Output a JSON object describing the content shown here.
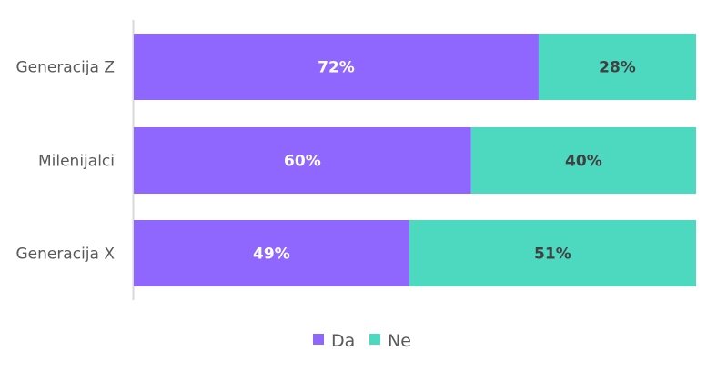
{
  "chart_data": {
    "type": "bar",
    "orientation": "horizontal",
    "stacked": "percent",
    "categories": [
      "Generacija Z",
      "Milenijalci",
      "Generacija X"
    ],
    "series": [
      {
        "name": "Da",
        "values": [
          72,
          60,
          49
        ],
        "color": "#8F67FF",
        "label_color": "#FFFFFF"
      },
      {
        "name": "Ne",
        "values": [
          28,
          40,
          51
        ],
        "color": "#4DD9C0",
        "label_color": "#404040"
      }
    ],
    "value_suffix": "%",
    "xlim": [
      0,
      100
    ],
    "grid": false,
    "legend": "bottom"
  }
}
